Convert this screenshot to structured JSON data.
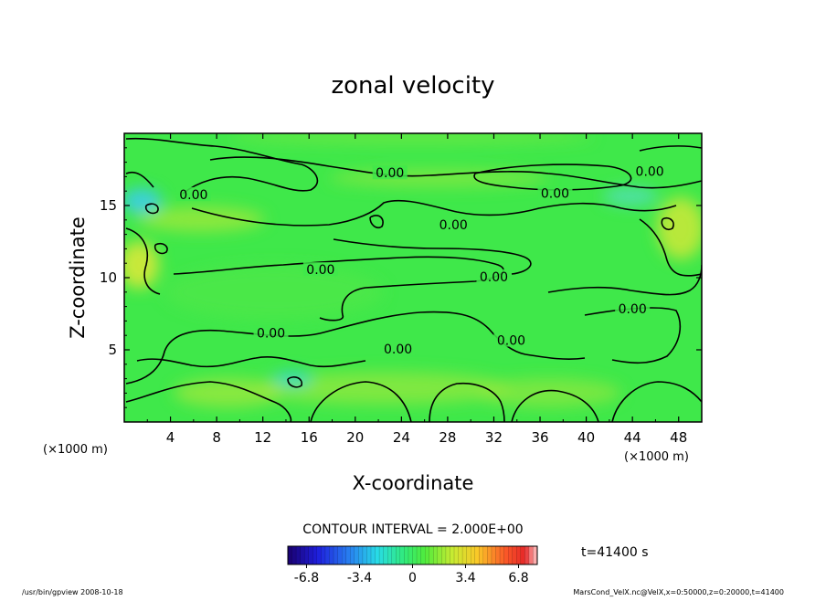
{
  "chart_data": {
    "type": "heatmap",
    "title": "zonal velocity",
    "xlabel": "X-coordinate",
    "ylabel": "Z-coordinate",
    "x_unit_label": "(×1000 m)",
    "y_unit_label": "(×1000 m)",
    "xlim": [
      0,
      50
    ],
    "ylim": [
      0,
      20
    ],
    "x_ticks": [
      4,
      8,
      12,
      16,
      20,
      24,
      28,
      32,
      36,
      40,
      44,
      48
    ],
    "y_ticks": [
      5,
      10,
      15
    ],
    "contour_interval_label": "CONTOUR INTERVAL = 2.000E+00",
    "contour_labels": [
      {
        "text": "0.00",
        "x": 23.0,
        "z": 17.2
      },
      {
        "text": "0.00",
        "x": 45.5,
        "z": 17.3
      },
      {
        "text": "0.00",
        "x": 37.3,
        "z": 15.8
      },
      {
        "text": "0.00",
        "x": 6.0,
        "z": 15.7
      },
      {
        "text": "0.00",
        "x": 28.5,
        "z": 13.6
      },
      {
        "text": "0.00",
        "x": 17.0,
        "z": 10.5
      },
      {
        "text": "0.00",
        "x": 32.0,
        "z": 10.0
      },
      {
        "text": "0.00",
        "x": 44.0,
        "z": 7.8
      },
      {
        "text": "0.00",
        "x": 12.7,
        "z": 6.1
      },
      {
        "text": "0.00",
        "x": 23.7,
        "z": 5.0
      },
      {
        "text": "0.00",
        "x": 33.5,
        "z": 5.6
      }
    ],
    "colorbar": {
      "range": [
        -8,
        8
      ],
      "tick_labels": [
        "-6.8",
        "-3.4",
        "0",
        "3.4",
        "6.8"
      ],
      "tick_values": [
        -6.8,
        -3.4,
        0,
        3.4,
        6.8
      ]
    },
    "time_label": "t=41400 s",
    "grid": false,
    "legend": "bottom-center"
  },
  "footer": {
    "left": "/usr/bin/gpview   2008-10-18",
    "right": "MarsCond_VelX.nc@VelX,x=0:50000,z=0:20000,t=41400"
  },
  "colors": {
    "field_base": "#3fe84a",
    "field_yellow": "#c8e83a",
    "field_cyan": "#3ae0c8",
    "contour": "#000000"
  }
}
